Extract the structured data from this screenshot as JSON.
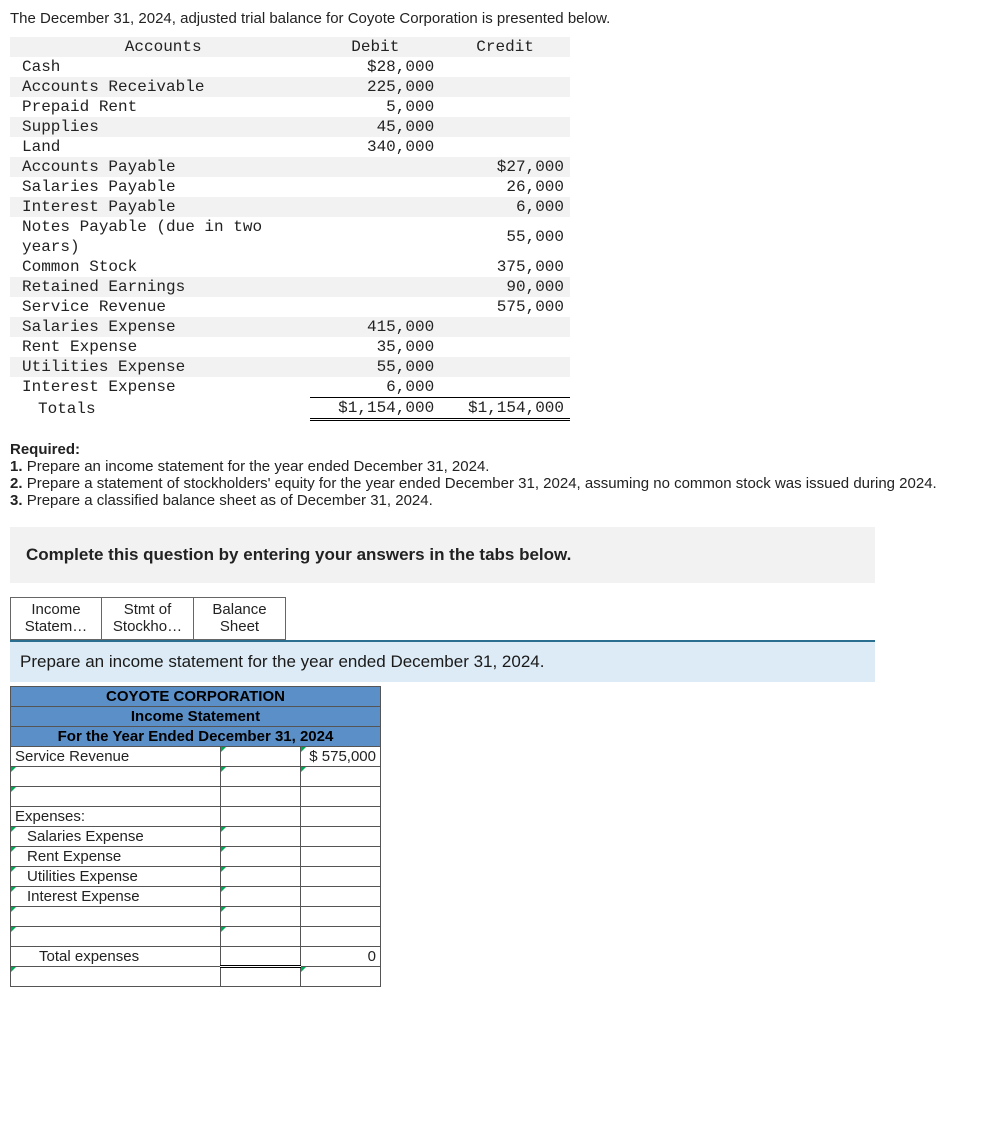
{
  "intro": "The December 31, 2024, adjusted trial balance for Coyote Corporation is presented below.",
  "trial_balance": {
    "headers": {
      "accounts": "Accounts",
      "debit": "Debit",
      "credit": "Credit"
    },
    "rows": [
      {
        "acct": "Cash",
        "debit": "$28,000",
        "credit": ""
      },
      {
        "acct": "Accounts Receivable",
        "debit": "225,000",
        "credit": ""
      },
      {
        "acct": "Prepaid Rent",
        "debit": "5,000",
        "credit": ""
      },
      {
        "acct": "Supplies",
        "debit": "45,000",
        "credit": ""
      },
      {
        "acct": "Land",
        "debit": "340,000",
        "credit": ""
      },
      {
        "acct": "Accounts Payable",
        "debit": "",
        "credit": "$27,000"
      },
      {
        "acct": "Salaries Payable",
        "debit": "",
        "credit": "26,000"
      },
      {
        "acct": "Interest Payable",
        "debit": "",
        "credit": "6,000"
      },
      {
        "acct": "Notes Payable (due in two years)",
        "debit": "",
        "credit": "55,000"
      },
      {
        "acct": "Common Stock",
        "debit": "",
        "credit": "375,000"
      },
      {
        "acct": "Retained Earnings",
        "debit": "",
        "credit": "90,000"
      },
      {
        "acct": "Service Revenue",
        "debit": "",
        "credit": "575,000"
      },
      {
        "acct": "Salaries Expense",
        "debit": "415,000",
        "credit": ""
      },
      {
        "acct": "Rent Expense",
        "debit": "35,000",
        "credit": ""
      },
      {
        "acct": "Utilities Expense",
        "debit": "55,000",
        "credit": ""
      },
      {
        "acct": "Interest Expense",
        "debit": "6,000",
        "credit": ""
      }
    ],
    "totals": {
      "label": "Totals",
      "debit": "$1,154,000",
      "credit": "$1,154,000"
    }
  },
  "required": {
    "heading": "Required:",
    "items": [
      "Prepare an income statement for the year ended December 31, 2024.",
      "Prepare a statement of stockholders' equity for the year ended December 31, 2024, assuming no common stock was issued during 2024.",
      "Prepare a classified balance sheet as of December 31, 2024."
    ]
  },
  "instruction_bar": "Complete this question by entering your answers in the tabs below.",
  "tabs": [
    {
      "line1": "Income",
      "line2": "Statem…"
    },
    {
      "line1": "Stmt of",
      "line2": "Stockho…"
    },
    {
      "line1": "Balance",
      "line2": "Sheet"
    }
  ],
  "tab_instruction": "Prepare an income statement for the year ended December 31, 2024.",
  "income_stmt": {
    "title1": "COYOTE CORPORATION",
    "title2": "Income Statement",
    "title3": "For the Year Ended December 31, 2024",
    "rows": {
      "service_rev_label": "Service Revenue",
      "service_rev_amt": "$ 575,000",
      "expenses_hdr": "Expenses:",
      "exp1": "Salaries Expense",
      "exp2": "Rent Expense",
      "exp3": "Utilities Expense",
      "exp4": "Interest Expense",
      "total_exp_label": "Total expenses",
      "total_exp_amt": "0"
    }
  },
  "colors": {
    "shade": "#f2f2f2",
    "tab_instr_bg": "#dcebf5",
    "tab_instr_border": "#2a6f8f",
    "stmt_hdr_bg": "#5b8fc7"
  }
}
